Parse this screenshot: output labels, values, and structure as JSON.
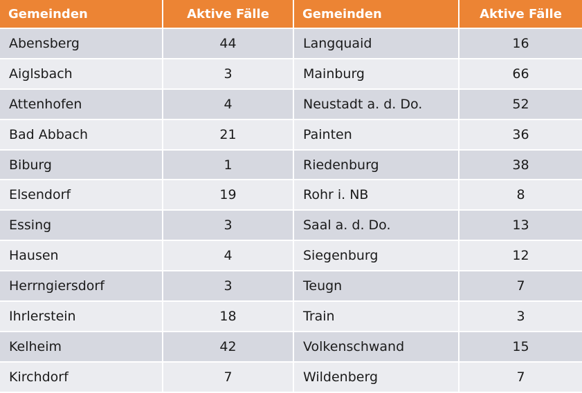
{
  "table": {
    "headers": [
      "Gemeinden",
      "Aktive Fälle",
      "Gemeinden",
      "Aktive Fälle"
    ],
    "rows": [
      [
        "Abensberg",
        "44",
        "Langquaid",
        "16"
      ],
      [
        "Aiglsbach",
        "3",
        "Mainburg",
        "66"
      ],
      [
        "Attenhofen",
        "4",
        "Neustadt a. d. Do.",
        "52"
      ],
      [
        "Bad Abbach",
        "21",
        "Painten",
        "36"
      ],
      [
        "Biburg",
        "1",
        "Riedenburg",
        "38"
      ],
      [
        "Elsendorf",
        "19",
        "Rohr i. NB",
        "8"
      ],
      [
        "Essing",
        "3",
        "Saal a. d. Do.",
        "13"
      ],
      [
        "Hausen",
        "4",
        "Siegenburg",
        "12"
      ],
      [
        "Herrngiersdorf",
        "3",
        "Teugn",
        "7"
      ],
      [
        "Ihrlerstein",
        "18",
        "Train",
        "3"
      ],
      [
        "Kelheim",
        "42",
        "Volkenschwand",
        "15"
      ],
      [
        "Kirchdorf",
        "7",
        "Wildenberg",
        "7"
      ]
    ]
  },
  "colors": {
    "header_bg": "#ec8434",
    "header_text": "#ffffff",
    "row_odd": "#d6d8e0",
    "row_even": "#ebecf0"
  }
}
